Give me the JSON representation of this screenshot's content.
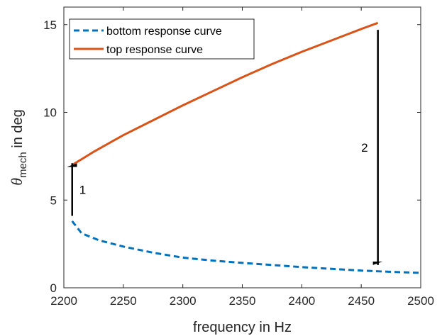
{
  "chart_data": {
    "type": "line",
    "xlabel": "frequency in Hz",
    "ylabel": {
      "symbol": "θ",
      "subscript": "mech",
      "rest": " in deg"
    },
    "xlim": [
      2200,
      2500
    ],
    "ylim": [
      0,
      16
    ],
    "xticks": [
      "2200",
      "2250",
      "2300",
      "2350",
      "2400",
      "2450",
      "2500"
    ],
    "yticks": [
      "0",
      "5",
      "10",
      "15"
    ],
    "grid": false,
    "legend_position": "top-left",
    "series": [
      {
        "name": "bottom response curve",
        "style": "dashed",
        "color": "#0072BD",
        "x": [
          2207,
          2215,
          2230,
          2250,
          2275,
          2300,
          2325,
          2350,
          2375,
          2400,
          2425,
          2450,
          2475,
          2500
        ],
        "y": [
          3.8,
          3.1,
          2.7,
          2.35,
          2.0,
          1.72,
          1.55,
          1.42,
          1.3,
          1.18,
          1.08,
          0.98,
          0.91,
          0.85
        ]
      },
      {
        "name": "top response curve",
        "style": "solid",
        "color": "#D95319",
        "x": [
          2207,
          2225,
          2250,
          2275,
          2300,
          2325,
          2350,
          2375,
          2400,
          2425,
          2450,
          2464
        ],
        "y": [
          7.0,
          7.75,
          8.7,
          9.55,
          10.4,
          11.2,
          12.0,
          12.75,
          13.45,
          14.1,
          14.75,
          15.1
        ]
      }
    ],
    "annotations": [
      {
        "label": "1",
        "x": 2207,
        "from": 4.1,
        "to": 7.1
      },
      {
        "label": "2",
        "x": 2464,
        "from": 14.7,
        "to": 1.3
      }
    ]
  }
}
